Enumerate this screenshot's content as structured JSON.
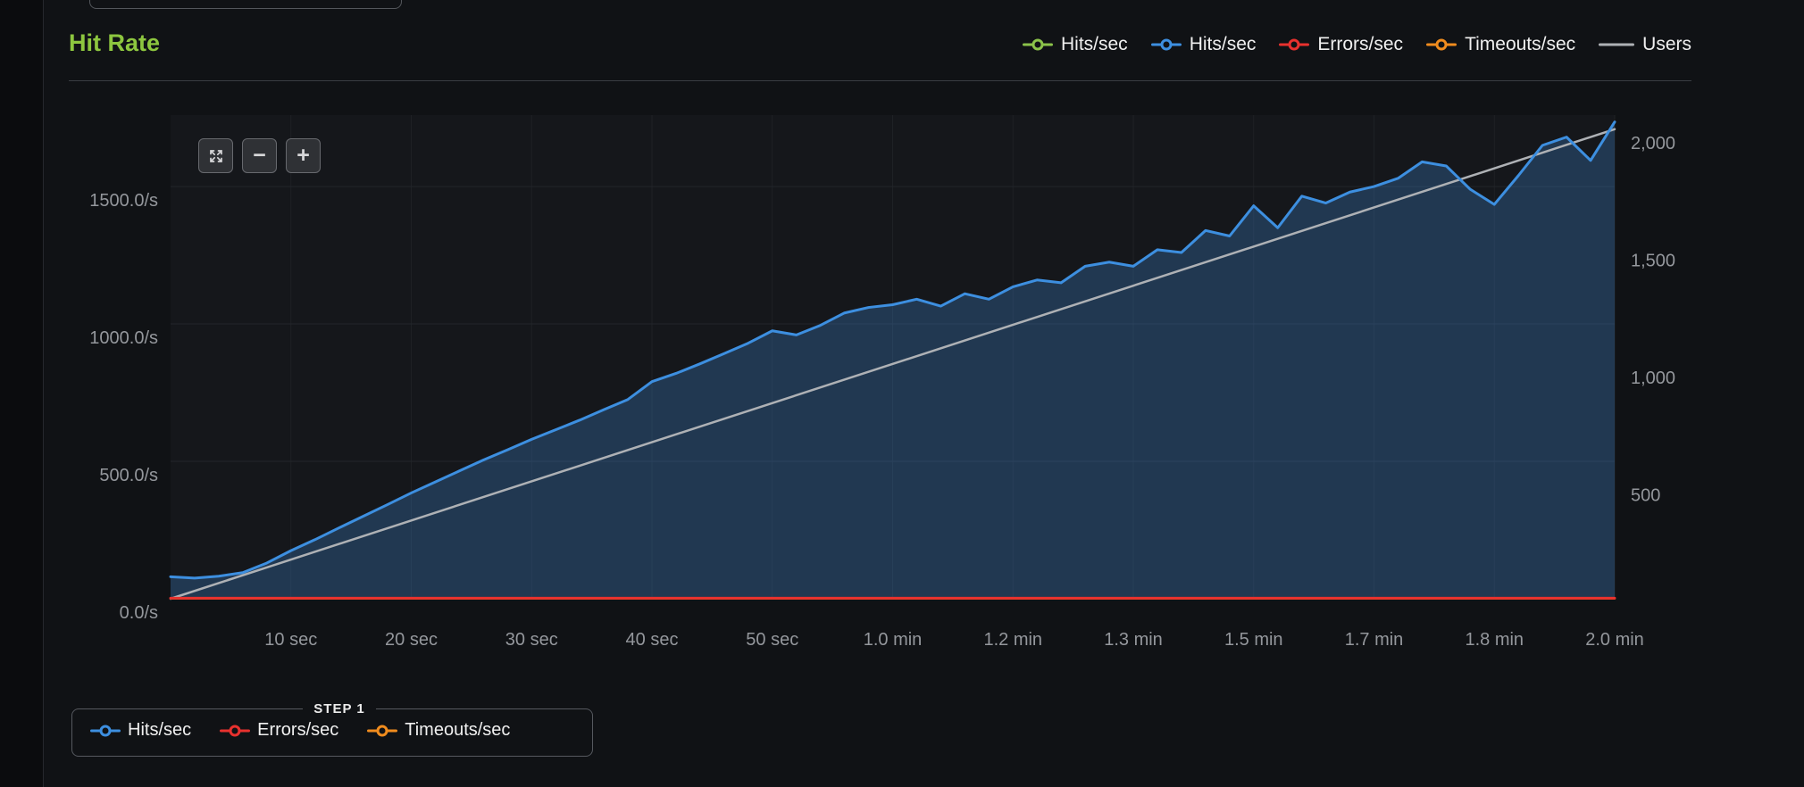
{
  "header": {
    "title": "Hit Rate",
    "legend": [
      {
        "label": "Hits/sec",
        "color": "#8bc34a",
        "marker": "line-dot"
      },
      {
        "label": "Hits/sec",
        "color": "#3d8fe0",
        "marker": "line-dot"
      },
      {
        "label": "Errors/sec",
        "color": "#e8312e",
        "marker": "line-dot"
      },
      {
        "label": "Timeouts/sec",
        "color": "#f08c1e",
        "marker": "line-dot"
      },
      {
        "label": "Users",
        "color": "#aeb1b5",
        "marker": "line"
      }
    ]
  },
  "toolbar": {
    "buttons": [
      {
        "name": "pan",
        "icon": "expand-arrows-icon"
      },
      {
        "name": "zoom-out",
        "icon": "minus-icon"
      },
      {
        "name": "zoom-in",
        "icon": "plus-icon"
      }
    ],
    "zoom_out_glyph": "−",
    "zoom_in_glyph": "+"
  },
  "theme": {
    "title_color": "#8dc63f",
    "background": "#101215",
    "axis_label_color": "#94979c",
    "grid_vertical_color": "#1e2125",
    "grid_horizontal_color": "#23262b",
    "plot_background": "#15171b"
  },
  "chart_data": {
    "type": "line",
    "title": "Hit Rate",
    "x_max_seconds": 120,
    "grid": true,
    "legend_position": "top-right",
    "x_ticks": [
      {
        "t": 10,
        "label": "10 sec"
      },
      {
        "t": 20,
        "label": "20 sec"
      },
      {
        "t": 30,
        "label": "30 sec"
      },
      {
        "t": 40,
        "label": "40 sec"
      },
      {
        "t": 50,
        "label": "50 sec"
      },
      {
        "t": 60,
        "label": "1.0 min"
      },
      {
        "t": 70,
        "label": "1.2 min"
      },
      {
        "t": 80,
        "label": "1.3 min"
      },
      {
        "t": 90,
        "label": "1.5 min"
      },
      {
        "t": 100,
        "label": "1.7 min"
      },
      {
        "t": 110,
        "label": "1.8 min"
      },
      {
        "t": 120,
        "label": "2.0 min"
      }
    ],
    "left_axis": {
      "unit": "/s",
      "max": 1760,
      "ticks": [
        {
          "v": 0,
          "label": "0.0/s"
        },
        {
          "v": 500,
          "label": "500.0/s"
        },
        {
          "v": 1000,
          "label": "1000.0/s"
        },
        {
          "v": 1500,
          "label": "1500.0/s"
        }
      ]
    },
    "right_axis": {
      "unit": "users",
      "max": 2060,
      "ticks": [
        {
          "v": 500,
          "label": "500"
        },
        {
          "v": 1000,
          "label": "1,000"
        },
        {
          "v": 1500,
          "label": "1,500"
        },
        {
          "v": 2000,
          "label": "2,000"
        }
      ]
    },
    "series": [
      {
        "name": "Hits/sec",
        "axis": "left",
        "color": "#3d8fe0",
        "fill": "rgba(62,134,208,0.30)",
        "style": "area-line",
        "width": 3,
        "z": 2,
        "x": [
          0,
          2,
          4,
          6,
          8,
          10,
          12,
          14,
          16,
          18,
          20,
          22,
          24,
          26,
          28,
          30,
          32,
          34,
          36,
          38,
          40,
          42,
          44,
          46,
          48,
          50,
          52,
          54,
          56,
          58,
          60,
          62,
          64,
          66,
          68,
          70,
          72,
          74,
          76,
          78,
          80,
          82,
          84,
          86,
          88,
          90,
          92,
          94,
          96,
          98,
          100,
          102,
          104,
          106,
          108,
          110,
          112,
          114,
          116,
          118,
          120
        ],
        "values": [
          80,
          75,
          82,
          95,
          130,
          175,
          215,
          258,
          300,
          342,
          385,
          425,
          465,
          505,
          542,
          580,
          615,
          650,
          688,
          725,
          790,
          820,
          855,
          892,
          930,
          975,
          960,
          995,
          1040,
          1060,
          1070,
          1090,
          1065,
          1110,
          1090,
          1135,
          1160,
          1150,
          1210,
          1225,
          1210,
          1270,
          1260,
          1340,
          1320,
          1430,
          1350,
          1465,
          1440,
          1480,
          1500,
          1530,
          1590,
          1575,
          1490,
          1435,
          1540,
          1650,
          1680,
          1595,
          1735
        ]
      },
      {
        "name": "Errors/sec",
        "axis": "left",
        "color": "#e8312e",
        "style": "line",
        "width": 3,
        "z": 4,
        "x": [
          0,
          120
        ],
        "values": [
          2,
          2
        ]
      },
      {
        "name": "Timeouts/sec",
        "axis": "left",
        "color": "#f08c1e",
        "style": "line",
        "width": 2,
        "z": 3,
        "x": [
          0,
          120
        ],
        "values": [
          0,
          0
        ]
      },
      {
        "name": "Users",
        "axis": "right",
        "color": "#aeb1b5",
        "style": "line",
        "width": 2.5,
        "z": 1,
        "x": [
          0,
          120
        ],
        "values": [
          0,
          2000
        ]
      }
    ]
  },
  "footer": {
    "step_label": "STEP 1",
    "legend": [
      {
        "label": "Hits/sec",
        "color": "#3d8fe0",
        "marker": "line-dot"
      },
      {
        "label": "Errors/sec",
        "color": "#e8312e",
        "marker": "line-dot"
      },
      {
        "label": "Timeouts/sec",
        "color": "#f08c1e",
        "marker": "line-dot"
      }
    ]
  }
}
